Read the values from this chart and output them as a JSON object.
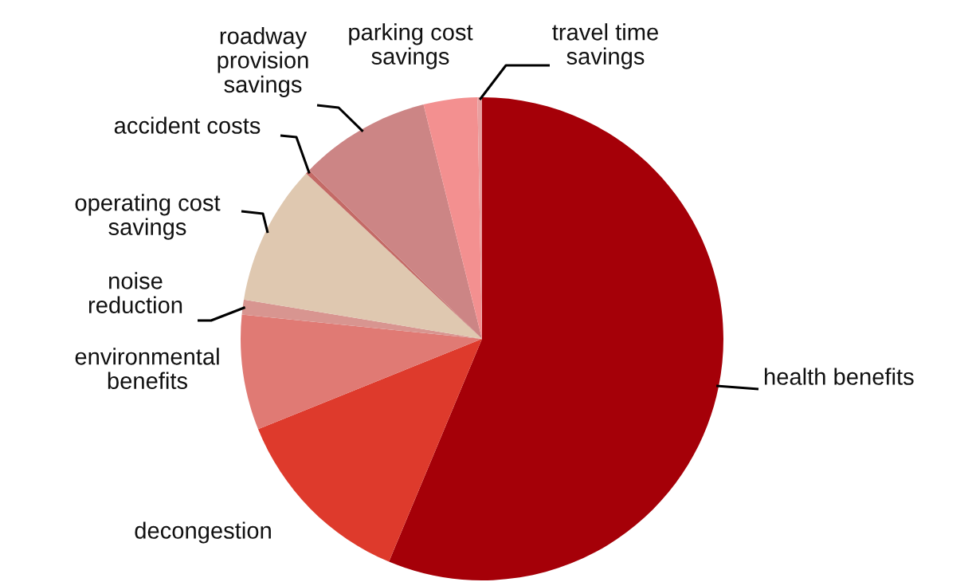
{
  "chart_data": {
    "type": "pie",
    "categories": [
      "health benefits",
      "decongestion",
      "environmental benefits",
      "noise reduction",
      "operating cost savings",
      "accident costs",
      "roadway provision savings",
      "parking cost savings",
      "travel time savings"
    ],
    "values": [
      56.3,
      12.6,
      7.7,
      1.0,
      9.4,
      0.3,
      8.8,
      3.6,
      0.3
    ],
    "colors": [
      "#a50008",
      "#de3a2c",
      "#e07a74",
      "#d89590",
      "#dfc8b0",
      "#c46a66",
      "#cc8585",
      "#f39090",
      "#e8a0a0"
    ],
    "legend": false
  }
}
